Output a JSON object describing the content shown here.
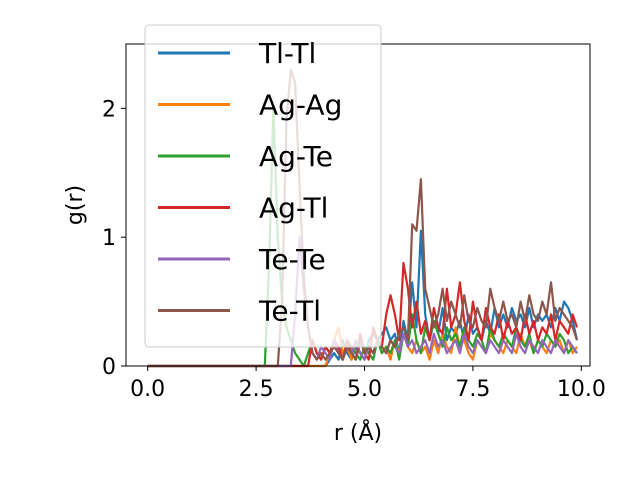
{
  "chart_data": {
    "type": "line",
    "xlabel": "r (Å)",
    "ylabel": "g(r)",
    "xlim": [
      -0.5,
      10.2
    ],
    "ylim": [
      0,
      2.5
    ],
    "x_ticks": [
      {
        "value": 0.0,
        "label": "0.0"
      },
      {
        "value": 2.5,
        "label": "2.5"
      },
      {
        "value": 5.0,
        "label": "5.0"
      },
      {
        "value": 7.5,
        "label": "7.5"
      },
      {
        "value": 10.0,
        "label": "10.0"
      }
    ],
    "y_ticks": [
      {
        "value": 0,
        "label": "0"
      },
      {
        "value": 1,
        "label": "1"
      },
      {
        "value": 2,
        "label": "2"
      }
    ],
    "legend_position": "top-left",
    "x": [
      0.0,
      2.5,
      2.7,
      2.8,
      2.9,
      3.0,
      3.1,
      3.2,
      3.3,
      3.4,
      3.5,
      3.6,
      3.7,
      3.8,
      3.9,
      4.0,
      4.1,
      4.2,
      4.3,
      4.4,
      4.5,
      4.6,
      4.7,
      4.8,
      4.9,
      5.0,
      5.1,
      5.2,
      5.3,
      5.4,
      5.5,
      5.6,
      5.7,
      5.8,
      5.9,
      6.0,
      6.1,
      6.2,
      6.3,
      6.4,
      6.5,
      6.6,
      6.7,
      6.8,
      6.9,
      7.0,
      7.1,
      7.2,
      7.3,
      7.4,
      7.5,
      7.6,
      7.7,
      7.8,
      7.9,
      8.0,
      8.1,
      8.2,
      8.3,
      8.4,
      8.5,
      8.6,
      8.7,
      8.8,
      8.9,
      9.0,
      9.1,
      9.2,
      9.3,
      9.4,
      9.5,
      9.6,
      9.7,
      9.8,
      9.9
    ],
    "series": [
      {
        "name": "Tl-Tl",
        "color": "#1f77b4",
        "values": [
          0,
          0,
          0,
          0,
          0,
          0,
          0,
          0,
          0,
          0,
          0,
          0,
          0,
          0,
          0,
          0,
          0,
          0.05,
          0.1,
          0.05,
          0.2,
          0.1,
          0.05,
          0.15,
          0.1,
          0.05,
          0.2,
          0.25,
          0.2,
          0.25,
          0.3,
          0.2,
          0.25,
          0.1,
          0.35,
          0.2,
          0.65,
          0.3,
          1.05,
          0.4,
          0.2,
          0.35,
          0.25,
          0.45,
          0.2,
          0.3,
          0.25,
          0.35,
          0.2,
          0.4,
          0.25,
          0.3,
          0.2,
          0.35,
          0.25,
          0.45,
          0.3,
          0.4,
          0.3,
          0.45,
          0.35,
          0.4,
          0.3,
          0.45,
          0.3,
          0.4,
          0.35,
          0.4,
          0.3,
          0.45,
          0.35,
          0.5,
          0.45,
          0.35,
          0.2
        ]
      },
      {
        "name": "Ag-Ag",
        "color": "#ff7f0e",
        "values": [
          0,
          0,
          0,
          0,
          0,
          0,
          0,
          0,
          0,
          0,
          0,
          0,
          0,
          0,
          0,
          0,
          0,
          0.1,
          0.2,
          0.3,
          0.1,
          0.15,
          0.05,
          0.2,
          0.1,
          0.05,
          0.15,
          0.1,
          0.2,
          0.1,
          0.15,
          0.05,
          0.2,
          0.1,
          0.25,
          0.15,
          0.1,
          0.2,
          0.1,
          0.15,
          0.05,
          0.2,
          0.1,
          0.25,
          0.15,
          0.1,
          0.3,
          0.15,
          0.2,
          0.1,
          0.05,
          0.2,
          0.15,
          0.1,
          0.25,
          0.2,
          0.15,
          0.1,
          0.2,
          0.15,
          0.1,
          0.25,
          0.15,
          0.2,
          0.1,
          0.2,
          0.15,
          0.1,
          0.2,
          0.15,
          0.2,
          0.1,
          0.2,
          0.1,
          0.15
        ]
      },
      {
        "name": "Ag-Te",
        "color": "#2ca02c",
        "values": [
          0,
          0,
          0,
          0.8,
          2.0,
          1.0,
          0.5,
          0.3,
          0.2,
          0.1,
          0.05,
          0,
          0.1,
          0.2,
          0.1,
          0.05,
          0.15,
          0.1,
          0.2,
          0.1,
          0.05,
          0.2,
          0.15,
          0.1,
          0.05,
          0.15,
          0.1,
          0.05,
          0.2,
          0.1,
          0.15,
          0.1,
          0.2,
          0.05,
          0.25,
          0.15,
          0.4,
          0.2,
          0.1,
          0.3,
          0.2,
          0.35,
          0.25,
          0.15,
          0.3,
          0.2,
          0.25,
          0.15,
          0.3,
          0.2,
          0.15,
          0.25,
          0.2,
          0.1,
          0.3,
          0.2,
          0.15,
          0.25,
          0.2,
          0.15,
          0.3,
          0.2,
          0.15,
          0.25,
          0.1,
          0.2,
          0.15,
          0.25,
          0.2,
          0.15,
          0.25,
          0.2,
          0.1,
          0.15,
          0.1
        ]
      },
      {
        "name": "Ag-Tl",
        "color": "#d62728",
        "values": [
          0,
          0,
          0,
          0,
          0,
          0,
          0,
          0,
          0,
          0,
          0,
          0,
          0,
          0.2,
          0.1,
          0.05,
          0.15,
          0.1,
          0.2,
          0.15,
          0.05,
          0.2,
          0.1,
          0.05,
          0.25,
          0.1,
          0.05,
          0.3,
          0.2,
          0.15,
          0.4,
          0.55,
          0.4,
          0.2,
          0.8,
          0.6,
          0.3,
          0.5,
          0.25,
          0.35,
          0.2,
          0.45,
          0.3,
          0.25,
          0.6,
          0.3,
          0.4,
          0.65,
          0.35,
          0.2,
          0.5,
          0.3,
          0.2,
          0.45,
          0.3,
          0.25,
          0.4,
          0.2,
          0.35,
          0.25,
          0.3,
          0.2,
          0.4,
          0.25,
          0.35,
          0.2,
          0.3,
          0.25,
          0.4,
          0.2,
          0.35,
          0.3,
          0.25,
          0.4,
          0.3
        ]
      },
      {
        "name": "Te-Te",
        "color": "#9467bd",
        "values": [
          0,
          0,
          0,
          0,
          0,
          0,
          0,
          0,
          0,
          0.4,
          1.0,
          0.6,
          0.3,
          0.1,
          0.05,
          0.15,
          0.1,
          0.05,
          0.2,
          0.1,
          0.05,
          0.15,
          0.1,
          0.2,
          0.1,
          0.05,
          0.15,
          0.1,
          0.2,
          0.15,
          0.1,
          0.2,
          0.15,
          0.1,
          0.25,
          0.15,
          0.2,
          0.1,
          0.15,
          0.2,
          0.1,
          0.25,
          0.15,
          0.2,
          0.1,
          0.15,
          0.2,
          0.1,
          0.25,
          0.15,
          0.1,
          0.2,
          0.15,
          0.1,
          0.2,
          0.15,
          0.1,
          0.2,
          0.15,
          0.1,
          0.25,
          0.15,
          0.1,
          0.2,
          0.15,
          0.1,
          0.2,
          0.15,
          0.1,
          0.2,
          0.15,
          0.1,
          0.2,
          0.15,
          0.1
        ]
      },
      {
        "name": "Te-Tl",
        "color": "#8c564b",
        "values": [
          0,
          0,
          0,
          0,
          0,
          0,
          0.5,
          1.9,
          2.3,
          2.2,
          1.4,
          0.7,
          0.3,
          0.1,
          0.05,
          0.1,
          0.05,
          0.1,
          0.15,
          0.1,
          0.05,
          0.15,
          0.1,
          0.05,
          0.2,
          0.1,
          0.15,
          0.1,
          0.2,
          0.15,
          0.1,
          0.2,
          0.15,
          0.25,
          0.3,
          0.2,
          1.1,
          1.05,
          1.45,
          0.6,
          0.45,
          0.3,
          0.4,
          0.6,
          0.35,
          0.5,
          0.4,
          0.3,
          0.55,
          0.35,
          0.3,
          0.45,
          0.35,
          0.3,
          0.6,
          0.45,
          0.35,
          0.5,
          0.35,
          0.4,
          0.3,
          0.5,
          0.35,
          0.55,
          0.4,
          0.35,
          0.5,
          0.4,
          0.65,
          0.35,
          0.45,
          0.4,
          0.35,
          0.3,
          0.2
        ]
      }
    ]
  }
}
